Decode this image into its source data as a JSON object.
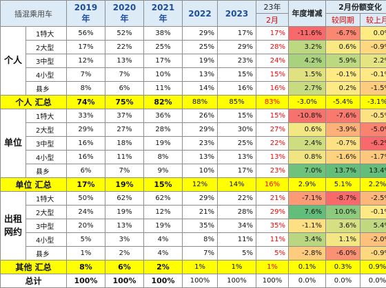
{
  "header": {
    "title": "插混乘用车",
    "years": [
      "2019",
      "2020",
      "2021",
      "2022",
      "2023"
    ],
    "year_suffix": "年",
    "col_23": "23年",
    "col_feb": "2月",
    "growth_title": "年度增减",
    "feb_change_title": "2月份额变化",
    "yoy_label": "较同期",
    "mom_label": "较上月"
  },
  "sections": [
    {
      "group": "个人",
      "rows": [
        {
          "cat": "1特大",
          "y2019": "56%",
          "y2020": "52%",
          "y2021": "38%",
          "y2022": "29%",
          "y2023": "17%",
          "feb": "17%",
          "growth": "-11.6%",
          "yoy": "-6.7%",
          "mom": "0.0%"
        },
        {
          "cat": "2大型",
          "y2019": "17%",
          "y2020": "22%",
          "y2021": "25%",
          "y2022": "25%",
          "y2023": "29%",
          "feb": "28%",
          "growth": "3.2%",
          "yoy": "0.6%",
          "mom": "-0.9%"
        },
        {
          "cat": "3中型",
          "y2019": "12%",
          "y2020": "13%",
          "y2021": "17%",
          "y2022": "19%",
          "y2023": "23%",
          "feb": "24%",
          "growth": "4.2%",
          "yoy": "5.9%",
          "mom": "2.2%"
        },
        {
          "cat": "4小型",
          "y2019": "7%",
          "y2020": "7%",
          "y2021": "10%",
          "y2022": "13%",
          "y2023": "15%",
          "feb": "15%",
          "growth": "1.5%",
          "yoy": "-0.1%",
          "mom": "-0.1%"
        },
        {
          "cat": "县乡",
          "y2019": "8%",
          "y2020": "6%",
          "y2021": "11%",
          "y2022": "14%",
          "y2023": "16%",
          "feb": "16%",
          "growth": "2.7%",
          "yoy": "0.2%",
          "mom": "-1.5%"
        }
      ],
      "summary": {
        "label": "个人 汇总",
        "y2019": "74%",
        "y2020": "75%",
        "y2021": "82%",
        "y2022": "88%",
        "y2023": "85%",
        "feb": "83%",
        "growth": "-3.0%",
        "yoy": "-5.4%",
        "mom": "-3.1%"
      }
    },
    {
      "group": "单位",
      "rows": [
        {
          "cat": "1特大",
          "y2019": "33%",
          "y2020": "37%",
          "y2021": "36%",
          "y2022": "26%",
          "y2023": "15%",
          "feb": "15%",
          "growth": "-10.8%",
          "yoy": "-7.6%",
          "mom": "-0.5%"
        },
        {
          "cat": "2大型",
          "y2019": "29%",
          "y2020": "27%",
          "y2021": "28%",
          "y2022": "29%",
          "y2023": "30%",
          "feb": "27%",
          "growth": "0.6%",
          "yoy": "-3.9%",
          "mom": "-5.0%"
        },
        {
          "cat": "3中型",
          "y2019": "16%",
          "y2020": "18%",
          "y2021": "19%",
          "y2022": "23%",
          "y2023": "25%",
          "feb": "22%",
          "growth": "2.4%",
          "yoy": "-0.7%",
          "mom": "-6.2%"
        },
        {
          "cat": "4小型",
          "y2019": "16%",
          "y2020": "11%",
          "y2021": "8%",
          "y2022": "13%",
          "y2023": "13%",
          "feb": "13%",
          "growth": "0.8%",
          "yoy": "-1.6%",
          "mom": "-1.7%"
        },
        {
          "cat": "县乡",
          "y2019": "6%",
          "y2020": "7%",
          "y2021": "9%",
          "y2022": "10%",
          "y2023": "17%",
          "feb": "23%",
          "growth": "7.0%",
          "yoy": "13.7%",
          "mom": "13.4%"
        }
      ],
      "summary": {
        "label": "单位 汇总",
        "y2019": "17%",
        "y2020": "19%",
        "y2021": "15%",
        "y2022": "12%",
        "y2023": "14%",
        "feb": "16%",
        "growth": "2.9%",
        "yoy": "5.1%",
        "mom": "2.2%"
      }
    },
    {
      "group": "出租网约",
      "rows": [
        {
          "cat": "1特大",
          "y2019": "50%",
          "y2020": "62%",
          "y2021": "62%",
          "y2022": "29%",
          "y2023": "22%",
          "feb": "21%",
          "growth": "-7.1%",
          "yoy": "-8.7%",
          "mom": "-2.5%"
        },
        {
          "cat": "2大型",
          "y2019": "24%",
          "y2020": "19%",
          "y2021": "12%",
          "y2022": "21%",
          "y2023": "28%",
          "feb": "29%",
          "growth": "7.6%",
          "yoy": "10.0%",
          "mom": "-0.1%"
        },
        {
          "cat": "3中型",
          "y2019": "20%",
          "y2020": "13%",
          "y2021": "19%",
          "y2022": "35%",
          "y2023": "34%",
          "feb": "35%",
          "growth": "-1.1%",
          "yoy": "3.6%",
          "mom": "5.4%"
        },
        {
          "cat": "4小型",
          "y2019": "5%",
          "y2020": "3%",
          "y2021": "4%",
          "y2022": "8%",
          "y2023": "11%",
          "feb": "11%",
          "growth": "3.4%",
          "yoy": "1.1%",
          "mom": "-2.0%"
        },
        {
          "cat": "县乡",
          "y2019": "1%",
          "y2020": "2%",
          "y2021": "4%",
          "y2022": "7%",
          "y2023": "5%",
          "feb": "5%",
          "growth": "-2.8%",
          "yoy": "-6.0%",
          "mom": "-0.9%"
        }
      ],
      "summary": {
        "label": "其他 汇总",
        "y2019": "8%",
        "y2020": "6%",
        "y2021": "2%",
        "y2022": "1%",
        "y2023": "1%",
        "feb": "1%",
        "growth": "0.1%",
        "yoy": "0.3%",
        "mom": "0.9%"
      }
    }
  ],
  "total": {
    "label": "总计",
    "y2019": "100%",
    "y2020": "100%",
    "y2021": "100%",
    "y2022": "100%",
    "y2023": "100%",
    "feb": "100%",
    "growth": "0.0%",
    "yoy": "0.0%",
    "mom": "0.0%"
  },
  "colors": {
    "header_bg": "#ddebf7",
    "header_text": "#1f4e9e",
    "summary_bg": "#ffff00",
    "accent_red": "#ff0000",
    "heat_high": "#63be7b",
    "heat_mid": "#ffeb84",
    "heat_low": "#f8696b"
  }
}
